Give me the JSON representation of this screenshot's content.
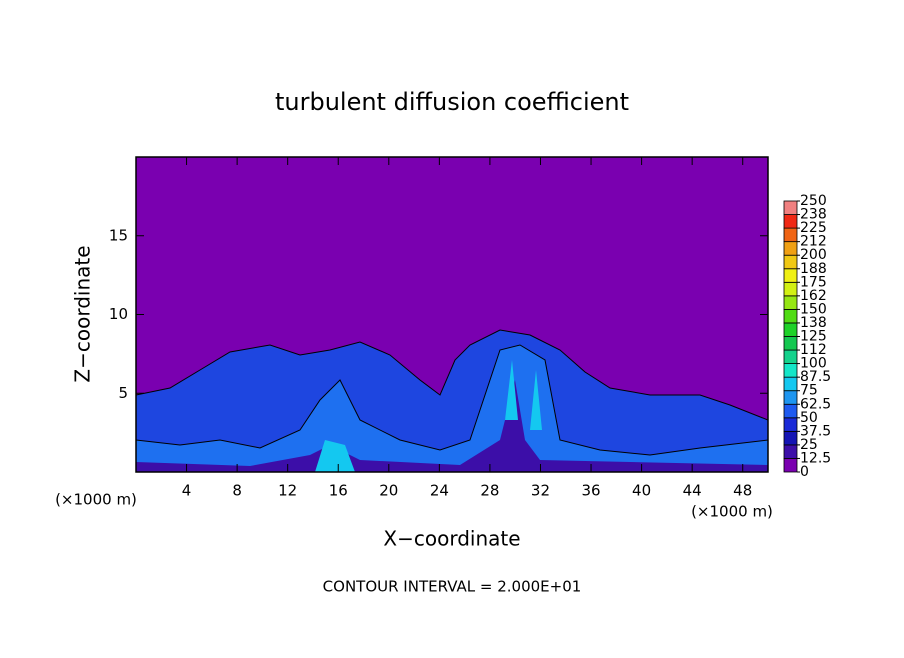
{
  "chart_data": {
    "type": "contour",
    "title": "turbulent diffusion coefficient",
    "xlabel": "X−coordinate",
    "ylabel": "Z−coordinate",
    "x_unit": "(×1000 m)",
    "y_unit": "(×1000 m)",
    "note": "CONTOUR INTERVAL = 2.000E+01",
    "xlim": [
      0,
      50
    ],
    "xticks": [
      4,
      8,
      12,
      16,
      20,
      24,
      28,
      32,
      36,
      40,
      44,
      48
    ],
    "ylim": [
      0,
      20
    ],
    "yticks": [
      5,
      10,
      15
    ],
    "colorbar": {
      "ticks": [
        0,
        12.5,
        25,
        37.5,
        50,
        62.5,
        75,
        87.5,
        100,
        {
          "value": 112.5,
          "label": "112"
        },
        125,
        {
          "value": 137.5,
          "label": "138"
        },
        150,
        {
          "value": 162.5,
          "label": "162"
        },
        175,
        {
          "value": 187.5,
          "label": "188"
        },
        200,
        {
          "value": 212.5,
          "label": "212"
        },
        225,
        {
          "value": 237.5,
          "label": "238"
        },
        250
      ],
      "colors": [
        "#7a00b0",
        "#3c0ea8",
        "#1414b4",
        "#1a2ad8",
        "#1e5af0",
        "#1e96f0",
        "#14c8f0",
        "#14e6c8",
        "#14d28c",
        "#14c850",
        "#1ed228",
        "#50dc14",
        "#96e614",
        "#d2f014",
        "#f0f014",
        "#f0c814",
        "#f0a014",
        "#f06414",
        "#f02814",
        "#f08080"
      ]
    }
  }
}
